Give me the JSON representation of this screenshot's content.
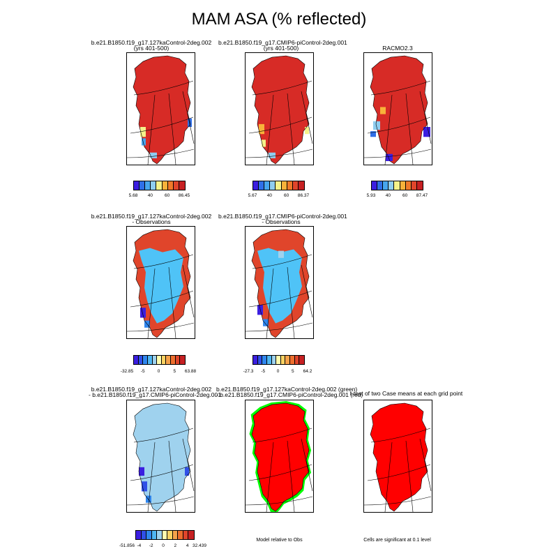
{
  "main_title": "MAM ASA (% reflected)",
  "chart_data": [
    {
      "type": "heatmap",
      "title": "b.e21.B1850.f19_g17.127kaControl-2deg.002",
      "subtitle": "(yrs 401-500)",
      "colorbar": {
        "min": 5.68,
        "max": 86.45,
        "tick_labels": [
          "5.68",
          "40",
          "60",
          "86.45"
        ]
      },
      "dominant_fill": "#d72b26"
    },
    {
      "type": "heatmap",
      "title": "b.e21.B1850.f19_g17.CMIP6-piControl-2deg.001",
      "subtitle": "(yrs 401-500)",
      "colorbar": {
        "min": 5.67,
        "max": 86.37,
        "tick_labels": [
          "5.67",
          "40",
          "60",
          "86.37"
        ]
      },
      "dominant_fill": "#d72b26"
    },
    {
      "type": "heatmap",
      "title": "RACMO2.3",
      "subtitle": "",
      "colorbar": {
        "min": 5.93,
        "max": 87.47,
        "tick_labels": [
          "5.93",
          "40",
          "60",
          "87.47"
        ]
      },
      "dominant_fill": "#d72b26"
    },
    {
      "type": "heatmap",
      "title": "b.e21.B1850.f19_g17.127kaControl-2deg.002",
      "subtitle": "- Observations",
      "colorbar": {
        "min": -32.85,
        "max": 63.88,
        "tick_labels": [
          "-32.85",
          "-5",
          "0",
          "5",
          "63.88"
        ]
      },
      "dominant_fill": "#4fc3f7"
    },
    {
      "type": "heatmap",
      "title": "b.e21.B1850.f19_g17.CMIP6-piControl-2deg.001",
      "subtitle": "- Observations",
      "colorbar": {
        "min": -27.3,
        "max": 64.2,
        "tick_labels": [
          "-27.3",
          "-5",
          "0",
          "5",
          "64.2"
        ]
      },
      "dominant_fill": "#4fc3f7"
    },
    {
      "type": "heatmap",
      "title": "b.e21.B1850.f19_g17.127kaControl-2deg.002",
      "subtitle": "- b.e21.B1850.f19_g17.CMIP6-piControl-2deg.001",
      "colorbar": {
        "min": -51.856,
        "max": 32.439,
        "tick_labels": [
          "-51.856",
          "-4",
          "-2",
          "0",
          "2",
          "4",
          "32.439"
        ]
      },
      "dominant_fill": "#9fd2ee"
    },
    {
      "type": "heatmap",
      "title": "b.e21.B1850.f19_g17.127kaControl-2deg.002 (green)",
      "subtitle": "- b.e21.B1850.f19_g17.CMIP6-piControl-2deg.001 (red)",
      "note": "Model relative to Obs",
      "dominant_fill": "#ff0000",
      "edge_fill": "#00ff00"
    },
    {
      "type": "heatmap",
      "title": "t-test of two Case means at each grid point",
      "subtitle": "",
      "note": "Cells are significant at 0.1 level",
      "dominant_fill": "#ff0000"
    }
  ],
  "colors": {
    "absolute_scale": [
      "#3b1ee0",
      "#2f6fe8",
      "#47a6ee",
      "#8fcdf0",
      "#f5f28a",
      "#f8b23a",
      "#f07a2a",
      "#e0452b",
      "#c62022"
    ],
    "diff_scale": [
      "#3b1ee0",
      "#3050e8",
      "#2f86ee",
      "#4fb6f2",
      "#9fd2ee",
      "#fffdb0",
      "#fbd363",
      "#f6a24a",
      "#ee6f2e",
      "#e0452b",
      "#c62022"
    ]
  }
}
